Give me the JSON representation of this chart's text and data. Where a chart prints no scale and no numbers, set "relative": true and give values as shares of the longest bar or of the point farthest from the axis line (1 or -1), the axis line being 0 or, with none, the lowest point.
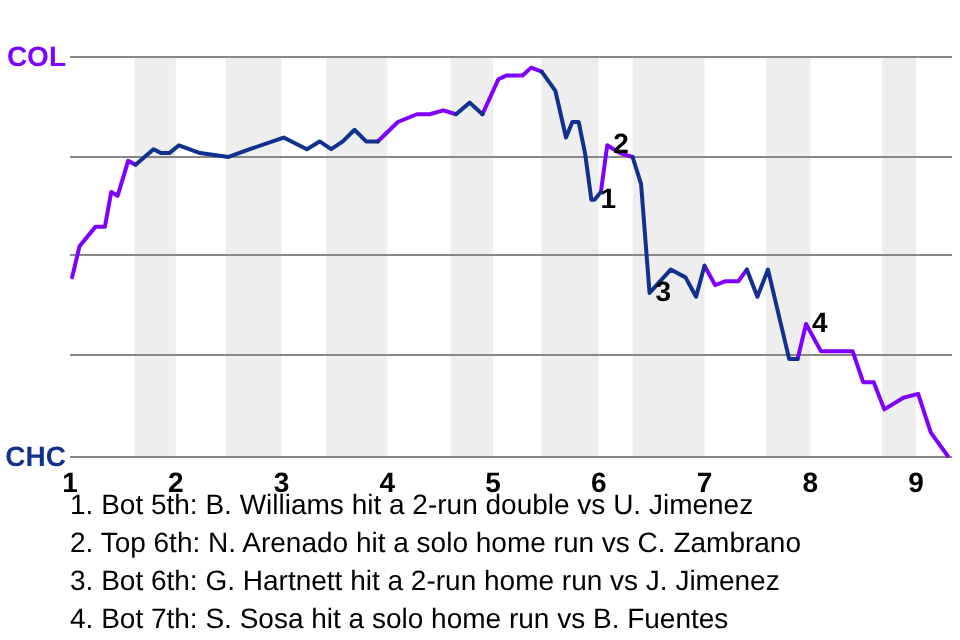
{
  "chart_data": {
    "type": "line",
    "relative": true,
    "x": [
      1.02,
      1.09,
      1.24,
      1.33,
      1.39,
      1.45,
      1.55,
      1.62,
      1.79,
      1.86,
      1.94,
      2.03,
      2.23,
      2.5,
      2.7,
      3.02,
      3.24,
      3.36,
      3.47,
      3.58,
      3.69,
      3.8,
      3.91,
      4.1,
      4.28,
      4.4,
      4.53,
      4.65,
      4.78,
      4.9,
      5.05,
      5.13,
      5.28,
      5.36,
      5.46,
      5.59,
      5.69,
      5.75,
      5.81,
      5.87,
      5.93,
      5.96,
      6.02,
      6.08,
      6.2,
      6.32,
      6.4,
      6.48,
      6.68,
      6.82,
      6.92,
      7,
      7.1,
      7.2,
      7.32,
      7.4,
      7.5,
      7.6,
      7.8,
      7.88,
      7.96,
      8.1,
      8.18,
      8.4,
      8.5,
      8.6,
      8.7,
      8.88,
      9.02,
      9.14,
      9.3
    ],
    "series": [
      {
        "color": "#7f00ff",
        "values": [
          0.46,
          0.54,
          0.59,
          0.59,
          0.68,
          0.67,
          0.76,
          0.75,
          null,
          null,
          null,
          null,
          null,
          null,
          null,
          null,
          null,
          null,
          null,
          null,
          null,
          null,
          0.81,
          0.86,
          0.88,
          0.88,
          0.89,
          0.88,
          null,
          0.88,
          0.97,
          0.98,
          0.98,
          1,
          0.99,
          null,
          null,
          null,
          null,
          null,
          null,
          null,
          0.68,
          0.8,
          0.78,
          0.77,
          null,
          null,
          null,
          null,
          null,
          0.49,
          0.44,
          0.45,
          0.45,
          0.48,
          null,
          null,
          null,
          0.25,
          0.34,
          0.27,
          0.27,
          0.27,
          0.19,
          0.19,
          0.12,
          0.15,
          0.16,
          0.06,
          0
        ]
      },
      {
        "color": "#12318f",
        "values": [
          null,
          null,
          null,
          null,
          null,
          null,
          null,
          0.75,
          0.79,
          0.78,
          0.78,
          0.8,
          0.78,
          0.77,
          0.79,
          0.82,
          0.79,
          0.81,
          0.79,
          0.81,
          0.84,
          0.81,
          0.81,
          null,
          null,
          null,
          null,
          0.88,
          0.91,
          0.88,
          null,
          null,
          null,
          null,
          0.99,
          0.94,
          0.82,
          0.86,
          0.86,
          0.78,
          0.66,
          0.66,
          0.68,
          null,
          null,
          0.77,
          0.7,
          0.42,
          0.48,
          0.46,
          0.41,
          0.49,
          null,
          null,
          null,
          0.48,
          0.41,
          0.48,
          0.25,
          0.25,
          null,
          null,
          null,
          null,
          null,
          null,
          null,
          null,
          null,
          null,
          null
        ]
      }
    ],
    "xlim": [
      1,
      9.34
    ],
    "xticks": [
      1,
      2,
      3,
      4,
      5,
      6,
      7,
      8,
      9
    ],
    "ref_lines": [
      {
        "axis": "y",
        "value": 0,
        "label": "CHC",
        "color": "#888888"
      },
      {
        "axis": "y",
        "value": 0.26,
        "color": "#888888"
      },
      {
        "axis": "y",
        "value": 0.52,
        "color": "#888888"
      },
      {
        "axis": "y",
        "value": 0.77,
        "color": "#888888"
      },
      {
        "axis": "y",
        "value": 1.03,
        "label": "COL",
        "color": "#888888"
      }
    ],
    "bands": [
      {
        "axis": "x",
        "from": 1.61,
        "to": 2,
        "color": "#eeeeee"
      },
      {
        "axis": "x",
        "from": 2.47,
        "to": 3,
        "color": "#eeeeee"
      },
      {
        "axis": "x",
        "from": 3.42,
        "to": 4,
        "color": "#eeeeee"
      },
      {
        "axis": "x",
        "from": 4.6,
        "to": 5,
        "color": "#eeeeee"
      },
      {
        "axis": "x",
        "from": 5.46,
        "to": 6,
        "color": "#eeeeee"
      },
      {
        "axis": "x",
        "from": 6.32,
        "to": 7,
        "color": "#eeeeee"
      },
      {
        "axis": "x",
        "from": 7.58,
        "to": 8,
        "color": "#eeeeee"
      },
      {
        "axis": "x",
        "from": 8.68,
        "to": 9,
        "color": "#eeeeee"
      }
    ],
    "annotations": [
      {
        "text": "1",
        "x": 5.96,
        "y": 0.66
      },
      {
        "text": "2",
        "x": 6.08,
        "y": 0.8
      },
      {
        "text": "3",
        "x": 6.48,
        "y": 0.42
      },
      {
        "text": "4",
        "x": 7.96,
        "y": 0.34
      },
      "1. Bot 5th: B. Williams hit a 2-run double vs U. Jimenez",
      "2. Top 6th: N. Arenado hit a solo home run vs C. Zambrano",
      "3. Bot 6th: G. Hartnett hit a 2-run home run vs J. Jimenez",
      "4. Bot 7th: S. Sosa hit a solo home run vs B. Fuentes"
    ],
    "marker": "none",
    "line_style": "solid"
  }
}
